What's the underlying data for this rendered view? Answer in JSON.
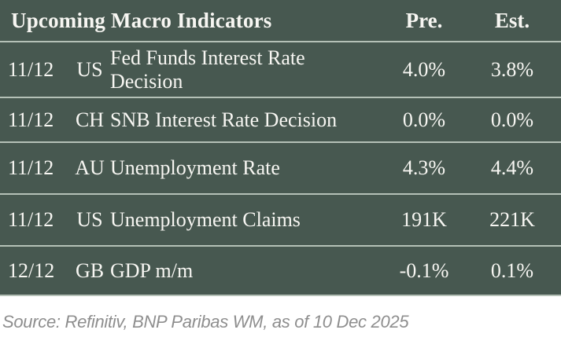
{
  "table": {
    "title": "Upcoming Macro Indicators",
    "columns": {
      "pre": "Pre.",
      "est": "Est."
    },
    "rows": [
      {
        "date": "11/12",
        "country": "US",
        "indicator": "Fed Funds Interest Rate Decision",
        "pre": "4.0%",
        "est": "3.8%"
      },
      {
        "date": "11/12",
        "country": "CH",
        "indicator": "SNB Interest Rate Decision",
        "pre": "0.0%",
        "est": "0.0%"
      },
      {
        "date": "11/12",
        "country": "AU",
        "indicator": "Unemployment Rate",
        "pre": "4.3%",
        "est": "4.4%"
      },
      {
        "date": "11/12",
        "country": "US",
        "indicator": "Unemployment Claims",
        "pre": "191K",
        "est": "221K"
      },
      {
        "date": "12/12",
        "country": "GB",
        "indicator": "GDP m/m",
        "pre": "-0.1%",
        "est": "0.1%"
      }
    ]
  },
  "footer": {
    "source": "Source: Refinitiv, BNP Paribas WM, as of 10 Dec 2025"
  },
  "colors": {
    "table_background": "#475850",
    "separator_line": "#b5c1b7",
    "table_text": "#f7f6f2",
    "source_text": "#8e8e8e"
  }
}
